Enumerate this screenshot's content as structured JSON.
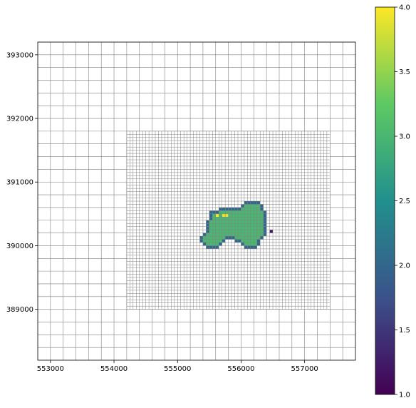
{
  "chart_data": {
    "type": "heatmap",
    "title": "",
    "xlabel": "",
    "ylabel": "",
    "xlim": [
      552800,
      557800
    ],
    "ylim": [
      388200,
      393200
    ],
    "grid": true,
    "x_ticks": [
      {
        "value": 553000,
        "label": "553000"
      },
      {
        "value": 554000,
        "label": "554000"
      },
      {
        "value": 555000,
        "label": "555000"
      },
      {
        "value": 556000,
        "label": "556000"
      },
      {
        "value": 557000,
        "label": "557000"
      }
    ],
    "y_ticks": [
      {
        "value": 389000,
        "label": "389000"
      },
      {
        "value": 390000,
        "label": "390000"
      },
      {
        "value": 391000,
        "label": "391000"
      },
      {
        "value": 392000,
        "label": "392000"
      },
      {
        "value": 393000,
        "label": "393000"
      }
    ],
    "coarse_grid": {
      "x0": 552800,
      "x1": 557800,
      "y0": 388200,
      "y1": 393200,
      "cell": 200
    },
    "refined_grid": {
      "x0": 554200,
      "x1": 557400,
      "y0": 389000,
      "y1": 391800,
      "cell": 50
    },
    "colorscale": {
      "min": 1.0,
      "max": 4.0,
      "colors": [
        "#440154",
        "#3b528b",
        "#21908d",
        "#5dc963",
        "#fde725"
      ],
      "ticks": [
        {
          "value": 1.0,
          "label": "1.0"
        },
        {
          "value": 1.5,
          "label": "1.5"
        },
        {
          "value": 2.0,
          "label": "2.0"
        },
        {
          "value": 2.5,
          "label": "2.5"
        },
        {
          "value": 3.0,
          "label": "3.0"
        },
        {
          "value": 3.5,
          "label": "3.5"
        },
        {
          "value": 4.0,
          "label": "4.0"
        }
      ]
    },
    "region": {
      "cell": 50,
      "interior_value": 3.0,
      "boundary_value": 2.0,
      "outline": [
        [
          555500,
          390520
        ],
        [
          555650,
          390560
        ],
        [
          555700,
          390600
        ],
        [
          555950,
          390600
        ],
        [
          556050,
          390650
        ],
        [
          556100,
          390700
        ],
        [
          556300,
          390700
        ],
        [
          556350,
          390600
        ],
        [
          556420,
          390500
        ],
        [
          556400,
          390300
        ],
        [
          556380,
          390150
        ],
        [
          556300,
          390050
        ],
        [
          556250,
          389950
        ],
        [
          556100,
          389950
        ],
        [
          556000,
          390050
        ],
        [
          555800,
          390100
        ],
        [
          555700,
          390050
        ],
        [
          555650,
          389950
        ],
        [
          555500,
          389950
        ],
        [
          555400,
          390000
        ],
        [
          555350,
          390100
        ],
        [
          555420,
          390200
        ],
        [
          555470,
          390380
        ]
      ],
      "special_cells": [
        {
          "x": 555600,
          "y": 390450,
          "v": 4.0
        },
        {
          "x": 555700,
          "y": 390450,
          "v": 3.9
        },
        {
          "x": 555750,
          "y": 390450,
          "v": 3.9
        },
        {
          "x": 556450,
          "y": 390200,
          "v": 1.2
        }
      ]
    }
  }
}
